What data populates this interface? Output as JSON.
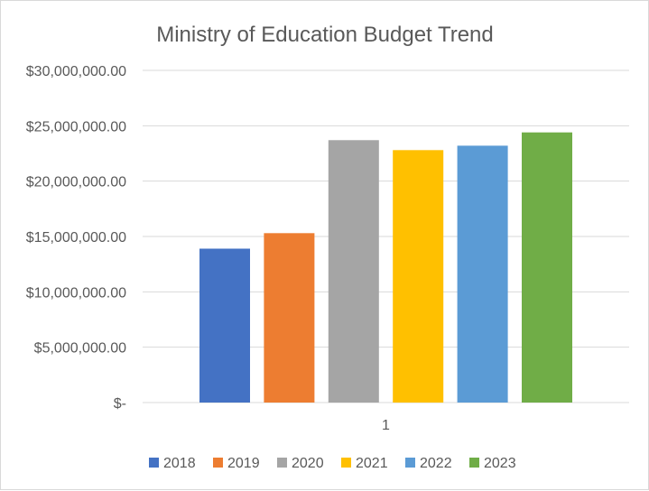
{
  "chart_data": {
    "type": "bar",
    "title": "Ministry of Education Budget Trend",
    "categories": [
      "1"
    ],
    "series": [
      {
        "name": "2018",
        "values": [
          13900000
        ],
        "color": "#4472C4"
      },
      {
        "name": "2019",
        "values": [
          15300000
        ],
        "color": "#ED7D31"
      },
      {
        "name": "2020",
        "values": [
          23700000
        ],
        "color": "#A5A5A5"
      },
      {
        "name": "2021",
        "values": [
          22800000
        ],
        "color": "#FFC000"
      },
      {
        "name": "2022",
        "values": [
          23200000
        ],
        "color": "#5B9BD5"
      },
      {
        "name": "2023",
        "values": [
          24400000
        ],
        "color": "#70AD47"
      }
    ],
    "ylim": [
      0,
      30000000
    ],
    "y_ticks": [
      {
        "value": 0,
        "label": "$-"
      },
      {
        "value": 5000000,
        "label": "$5,000,000.00"
      },
      {
        "value": 10000000,
        "label": "$10,000,000.00"
      },
      {
        "value": 15000000,
        "label": "$15,000,000.00"
      },
      {
        "value": 20000000,
        "label": "$20,000,000.00"
      },
      {
        "value": 25000000,
        "label": "$25,000,000.00"
      },
      {
        "value": 30000000,
        "label": "$30,000,000.00"
      }
    ],
    "grid": true,
    "legend_position": "bottom"
  }
}
